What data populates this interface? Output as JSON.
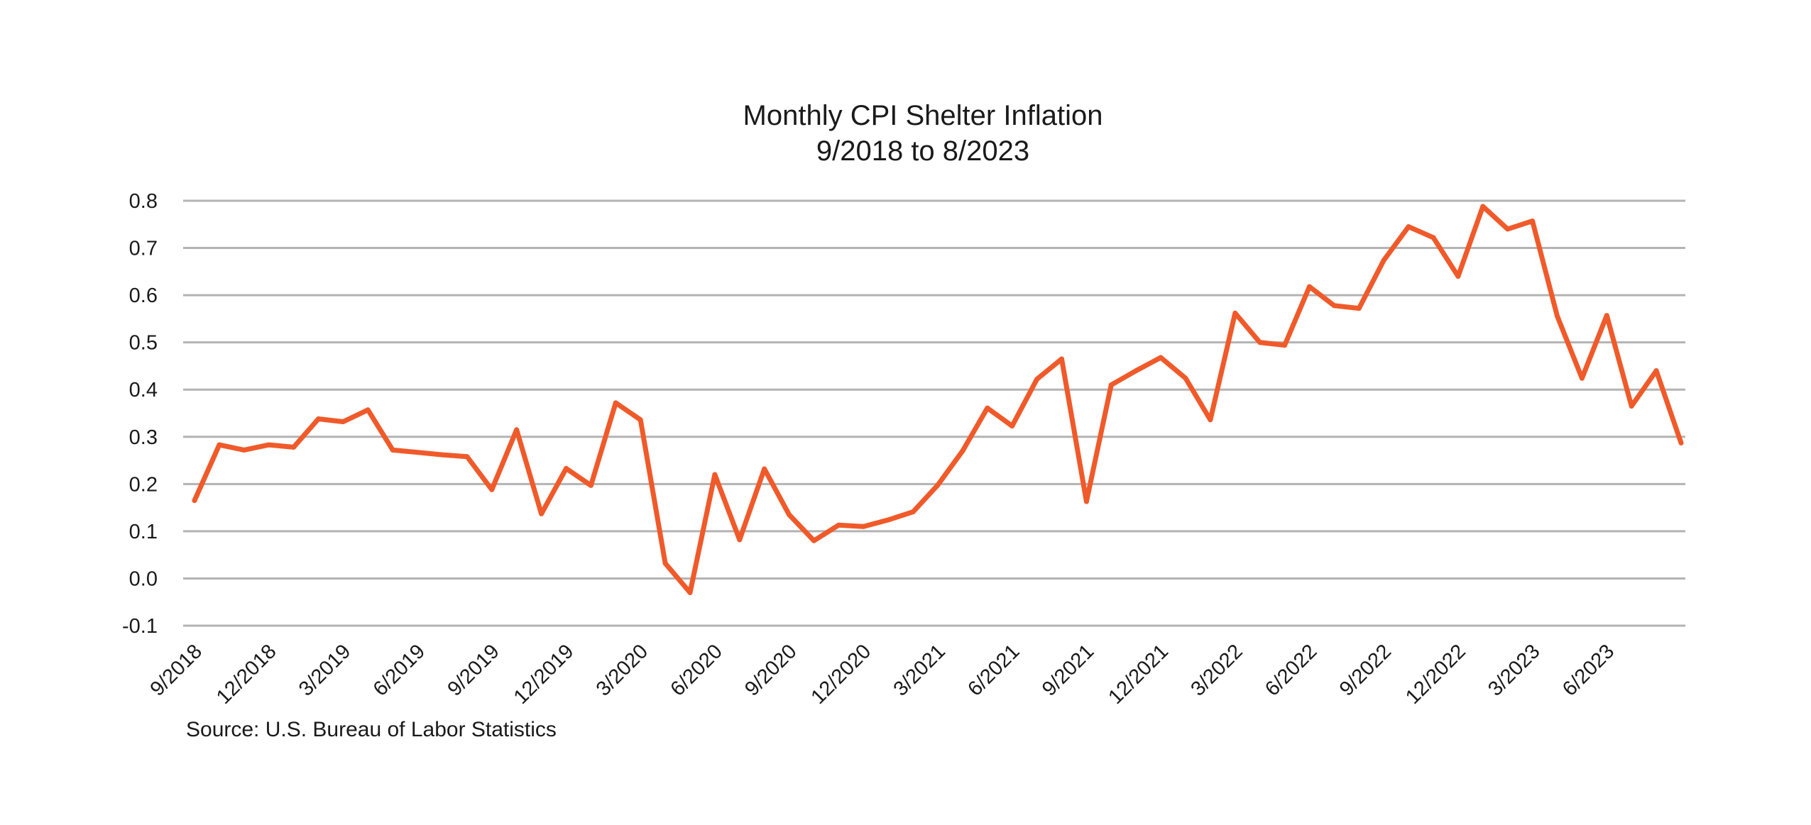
{
  "chart_data": {
    "type": "line",
    "title": "Monthly CPI Shelter Inflation",
    "subtitle": "9/2018 to 8/2023",
    "source": "Source: U.S. Bureau of Labor Statistics",
    "xlabel": "",
    "ylabel": "",
    "ylim": [
      -0.1,
      0.8
    ],
    "yticks": [
      "0.8",
      "0.7",
      "0.6",
      "0.5",
      "0.4",
      "0.3",
      "0.2",
      "0.1",
      "0.0",
      "-0.1"
    ],
    "ytick_values": [
      0.8,
      0.7,
      0.6,
      0.5,
      0.4,
      0.3,
      0.2,
      0.1,
      0.0,
      -0.1
    ],
    "xtick_labels": [
      "9/2018",
      "12/2018",
      "3/2019",
      "6/2019",
      "9/2019",
      "12/2019",
      "3/2020",
      "6/2020",
      "9/2020",
      "12/2020",
      "3/2021",
      "6/2021",
      "9/2021",
      "12/2021",
      "3/2022",
      "6/2022",
      "9/2022",
      "12/2022",
      "3/2023",
      "6/2023"
    ],
    "grid": true,
    "legend": "none",
    "line_color": "#f05a2a",
    "grid_color": "#b3b3b3",
    "series": [
      {
        "values": [
          0.165,
          0.283,
          0.272,
          0.283,
          0.278,
          0.338,
          0.332,
          0.357,
          0.272,
          0.267,
          0.262,
          0.258,
          0.188,
          0.315,
          0.137,
          0.233,
          0.197,
          0.372,
          0.336,
          0.032,
          -0.03,
          0.22,
          0.082,
          0.232,
          0.135,
          0.08,
          0.113,
          0.11,
          0.124,
          0.141,
          0.198,
          0.27,
          0.361,
          0.323,
          0.422,
          0.465,
          0.163,
          0.41,
          0.44,
          0.468,
          0.424,
          0.336,
          0.562,
          0.5,
          0.494,
          0.618,
          0.578,
          0.572,
          0.674,
          0.745,
          0.722,
          0.64,
          0.788,
          0.74,
          0.757,
          0.556,
          0.424,
          0.557,
          0.365,
          0.44,
          0.287
        ]
      }
    ]
  }
}
